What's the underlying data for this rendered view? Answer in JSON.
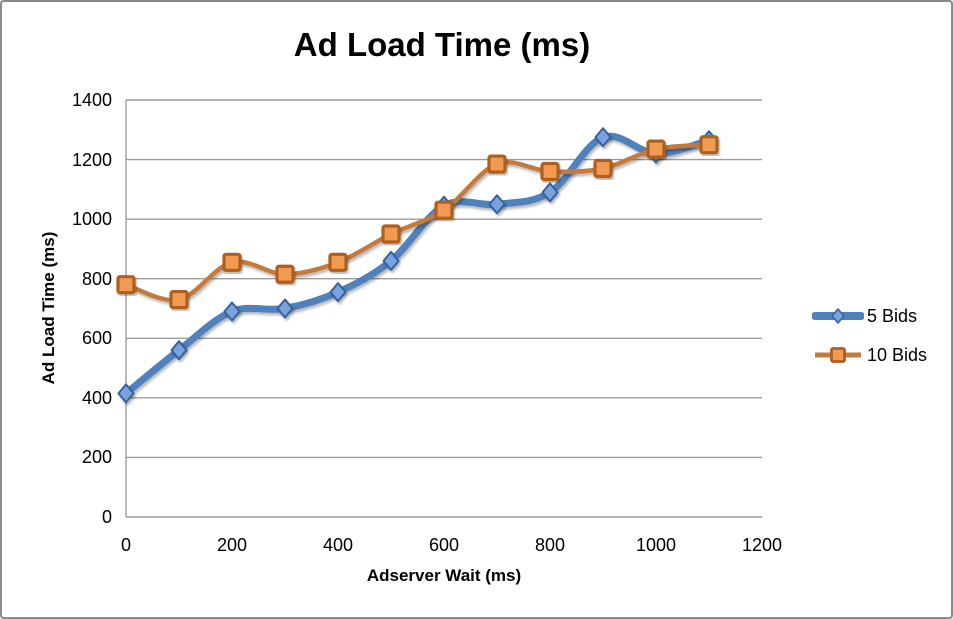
{
  "window": {
    "background": "#ffffff",
    "border_color": "#8a8a8a"
  },
  "chart_data": {
    "type": "line",
    "title": "Ad Load Time (ms)",
    "xlabel": "Adserver Wait (ms)",
    "ylabel": "Ad Load Time (ms)",
    "x": [
      0,
      100,
      200,
      300,
      400,
      500,
      600,
      700,
      800,
      900,
      1000,
      1100
    ],
    "series": [
      {
        "name": "5 Bids",
        "marker": "diamond",
        "color": "#4F81BD",
        "marker_fill": "#79A3DF",
        "marker_stroke": "#36629E",
        "line_width": 7,
        "values": [
          415,
          560,
          690,
          700,
          755,
          860,
          1045,
          1050,
          1090,
          1275,
          1220,
          1265
        ]
      },
      {
        "name": "10 Bids",
        "marker": "square",
        "color": "#C57A3C",
        "marker_fill": "#F09A52",
        "marker_stroke": "#AE5F1F",
        "line_width": 4.5,
        "values": [
          780,
          730,
          855,
          815,
          855,
          950,
          1030,
          1185,
          1160,
          1170,
          1235,
          1250
        ]
      }
    ],
    "xlim": [
      0,
      1200
    ],
    "ylim": [
      0,
      1400
    ],
    "x_ticks": [
      0,
      200,
      400,
      600,
      800,
      1000,
      1200
    ],
    "y_ticks": [
      0,
      200,
      400,
      600,
      800,
      1000,
      1200,
      1400
    ],
    "grid": "horizontal",
    "grid_color": "#9C9C9C",
    "legend_position": "right",
    "smooth_lines": true
  }
}
